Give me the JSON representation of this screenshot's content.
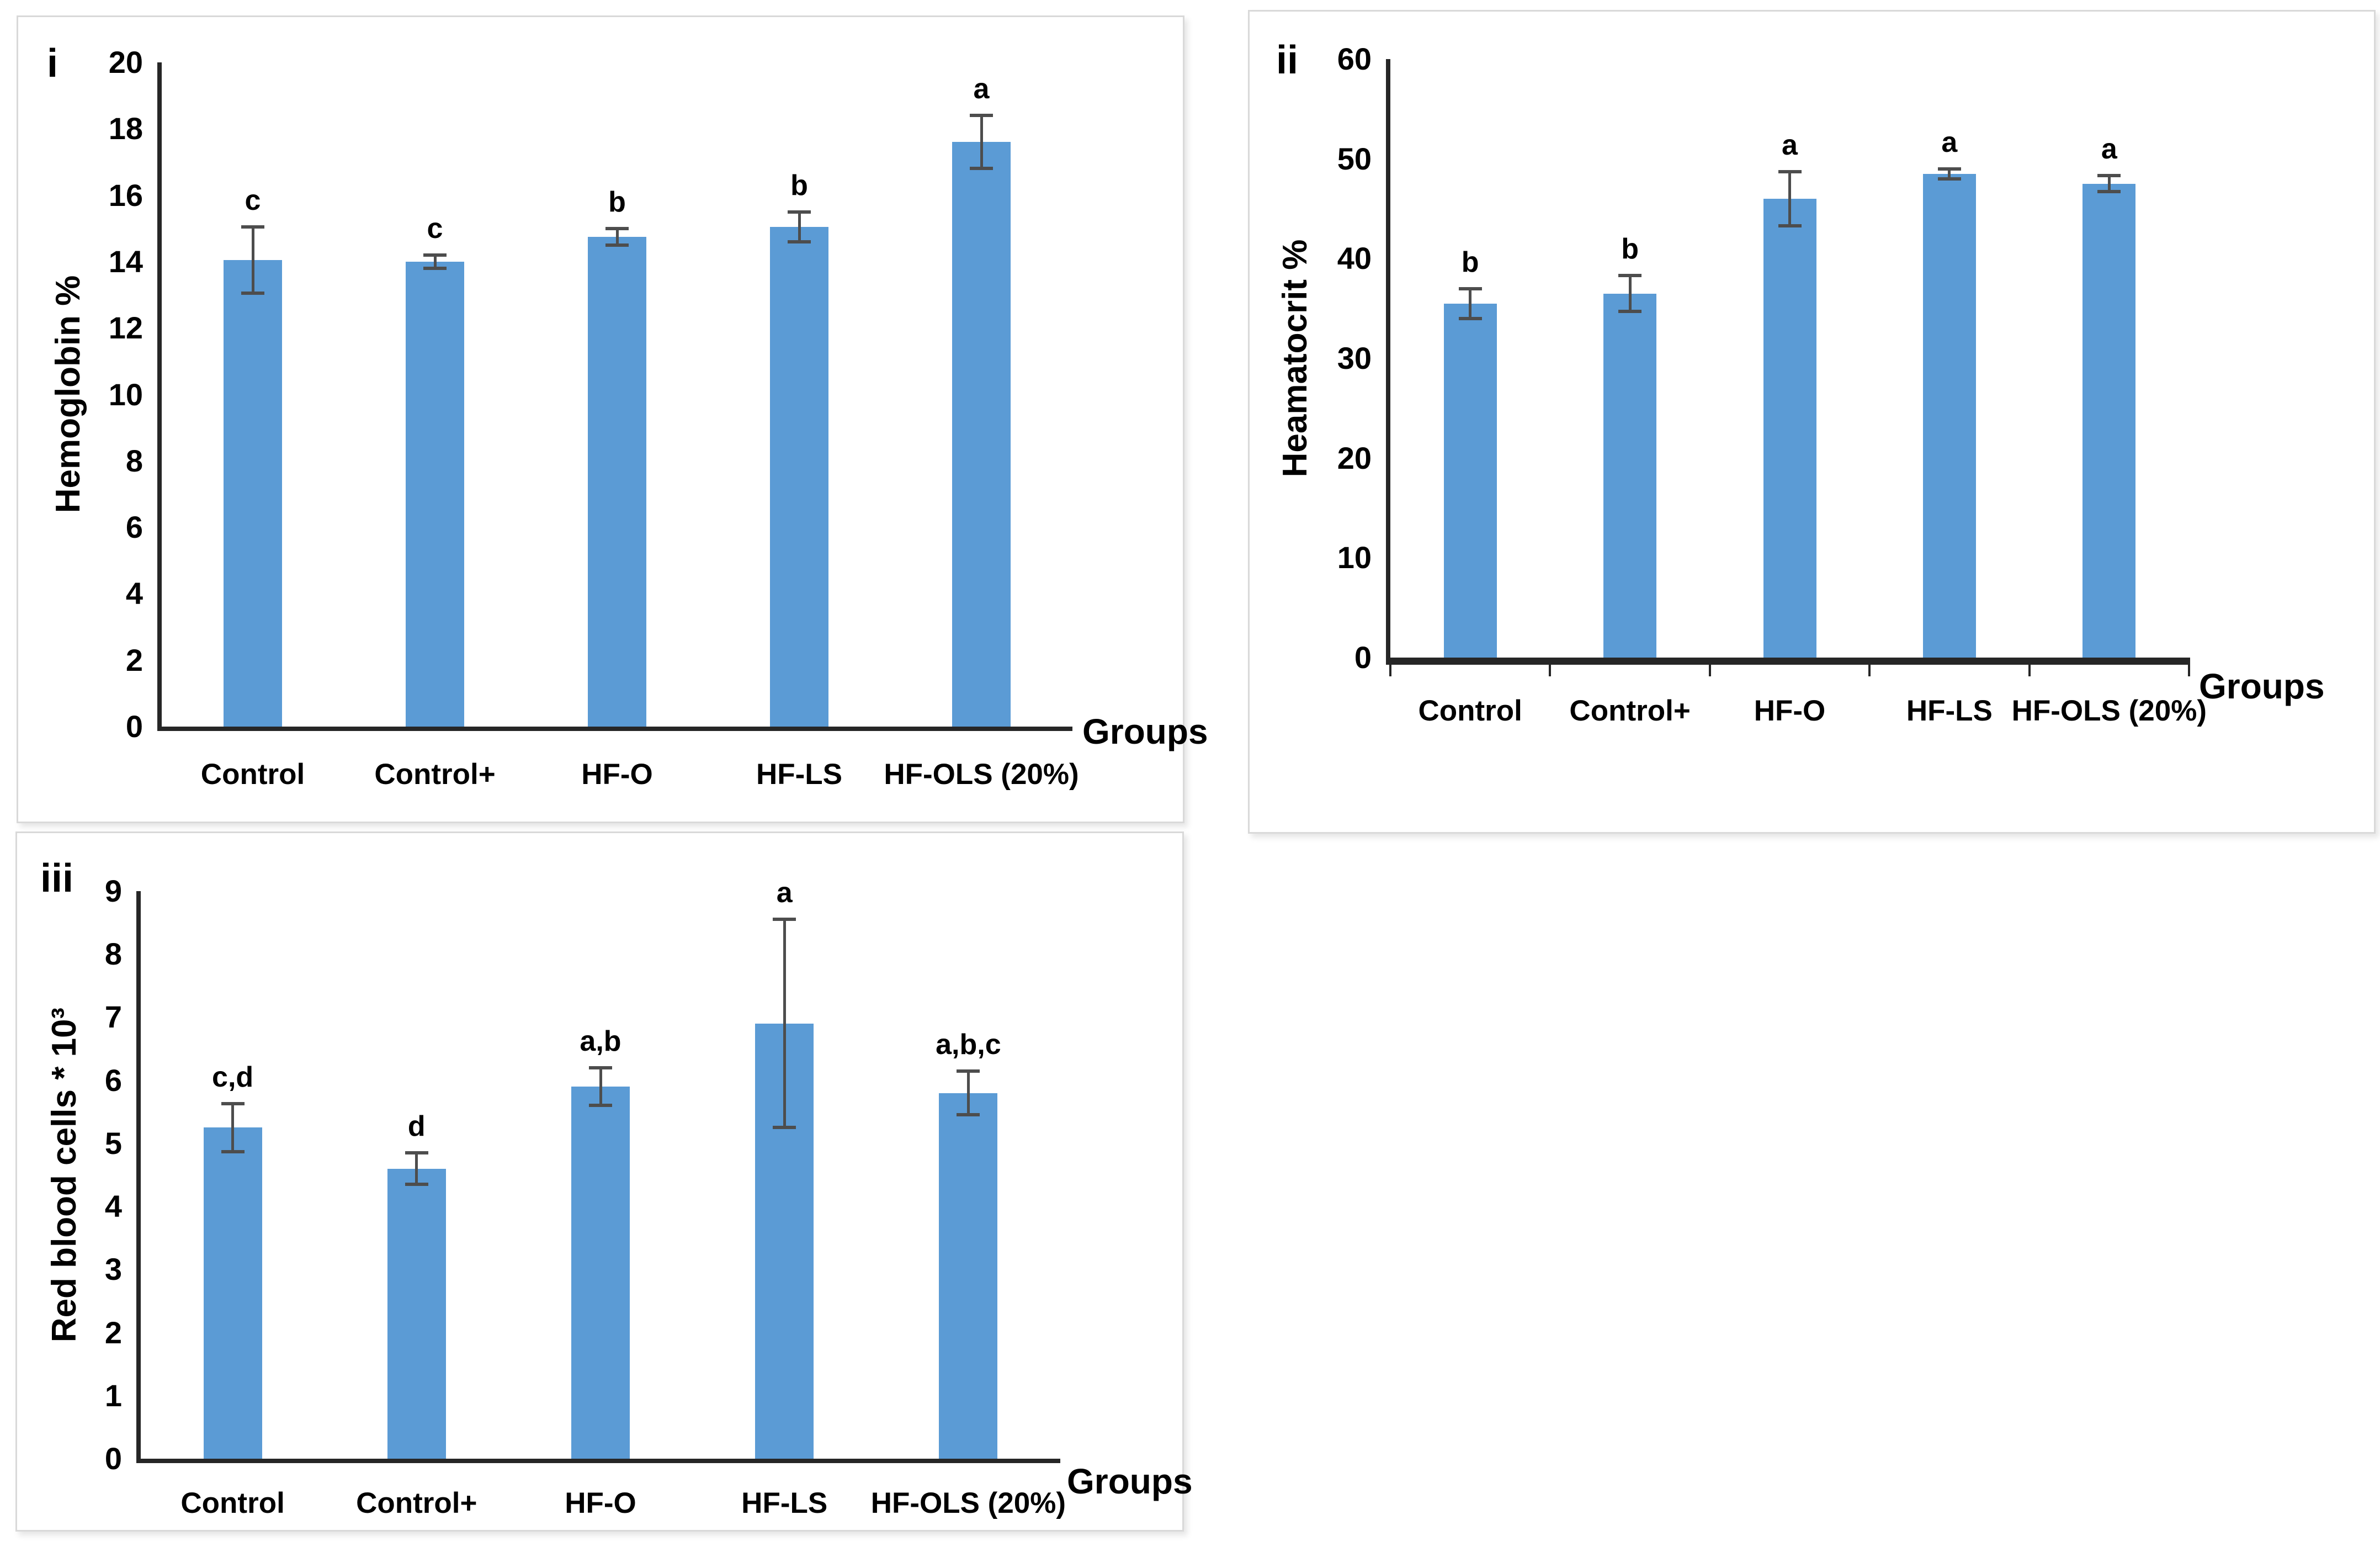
{
  "colors": {
    "bar": "#5B9BD5",
    "error_bar": "#4d4d4d",
    "axis": "#262626",
    "panel_border": "#d9d9d9",
    "text": "#000000",
    "background": "#ffffff"
  },
  "chart_data": [
    {
      "type": "bar",
      "panel_label": "i",
      "ylabel": "Hemoglobin %",
      "xlabel": "Groups",
      "categories": [
        "Control",
        "Control+",
        "HF-O",
        "HF-LS",
        "HF-OLS (20%)"
      ],
      "values": [
        14.05,
        14.0,
        14.75,
        15.05,
        17.6
      ],
      "errors": [
        1.0,
        0.2,
        0.25,
        0.45,
        0.8
      ],
      "significance_letters": [
        "c",
        "c",
        "b",
        "b",
        "a"
      ],
      "ylim": [
        0,
        20
      ],
      "ystep": 2,
      "grid": false,
      "legend": "none",
      "bar_color": "#5B9BD5"
    },
    {
      "type": "bar",
      "panel_label": "ii",
      "ylabel": "Heamatocrit %",
      "xlabel": "Groups",
      "categories": [
        "Control",
        "Control+",
        "HF-O",
        "HF-LS",
        "HF-OLS (20%)"
      ],
      "values": [
        35.5,
        36.5,
        46.0,
        48.5,
        47.5
      ],
      "errors": [
        1.5,
        1.8,
        2.7,
        0.5,
        0.8
      ],
      "significance_letters": [
        "b",
        "b",
        "a",
        "a",
        "a"
      ],
      "ylim": [
        0,
        60
      ],
      "ystep": 10,
      "grid": false,
      "legend": "none",
      "bar_color": "#5B9BD5"
    },
    {
      "type": "bar",
      "panel_label": "iii",
      "ylabel": "Red blood cells * 10³",
      "xlabel": "Groups",
      "categories": [
        "Control",
        "Control+",
        "HF-O",
        "HF-LS",
        "HF-OLS (20%)"
      ],
      "values": [
        5.25,
        4.6,
        5.9,
        6.9,
        5.8
      ],
      "errors": [
        0.38,
        0.25,
        0.3,
        1.65,
        0.35
      ],
      "significance_letters": [
        "c,d",
        "d",
        "a,b",
        "a",
        "a,b,c"
      ],
      "ylim": [
        0,
        9
      ],
      "ystep": 1,
      "grid": false,
      "legend": "none",
      "bar_color": "#5B9BD5"
    }
  ]
}
